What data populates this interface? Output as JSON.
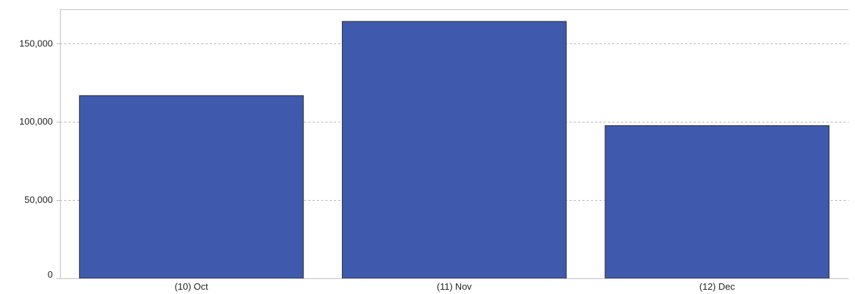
{
  "chart_data": {
    "type": "bar",
    "title": "",
    "xlabel": "",
    "ylabel": "",
    "categories": [
      "(10) Oct",
      "(11) Nov",
      "(12) Dec"
    ],
    "values": [
      116800,
      164200,
      97600
    ],
    "ylim": [
      0,
      172000
    ],
    "yticks": [
      0,
      50000,
      100000,
      150000
    ],
    "ytick_labels": [
      "0",
      "50,000",
      "100,000",
      "150,000"
    ],
    "grid": true,
    "grid_style": "dashed",
    "bar_color": "#3f5aad",
    "bar_edge_color": "#2a2a2a",
    "grid_color": "#b5b5b5",
    "axis_color": "#bfbfbf"
  }
}
